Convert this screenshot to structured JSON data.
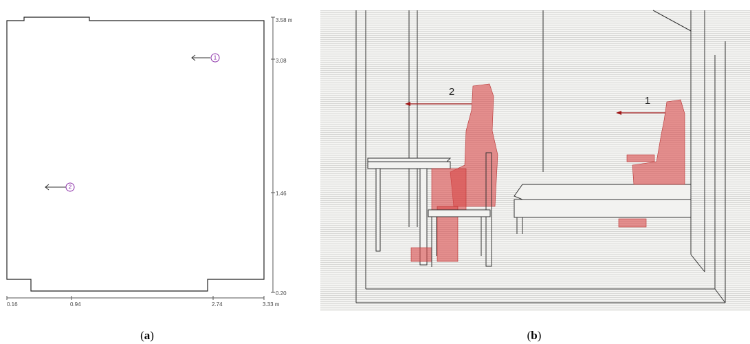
{
  "panel_a": {
    "x_axis": {
      "ticks": [
        "0.16",
        "0.94",
        "2.74",
        "3.33 m"
      ]
    },
    "y_axis": {
      "ticks": [
        "3.58 m",
        "3.08",
        "1.46",
        "0.20"
      ]
    },
    "observers": [
      "1",
      "2"
    ],
    "caption": {
      "open": "(",
      "letter": "a",
      "close": ")"
    }
  },
  "panel_b": {
    "observers": [
      "2",
      "1"
    ],
    "caption": {
      "open": "(",
      "letter": "b",
      "close": ")"
    }
  }
}
